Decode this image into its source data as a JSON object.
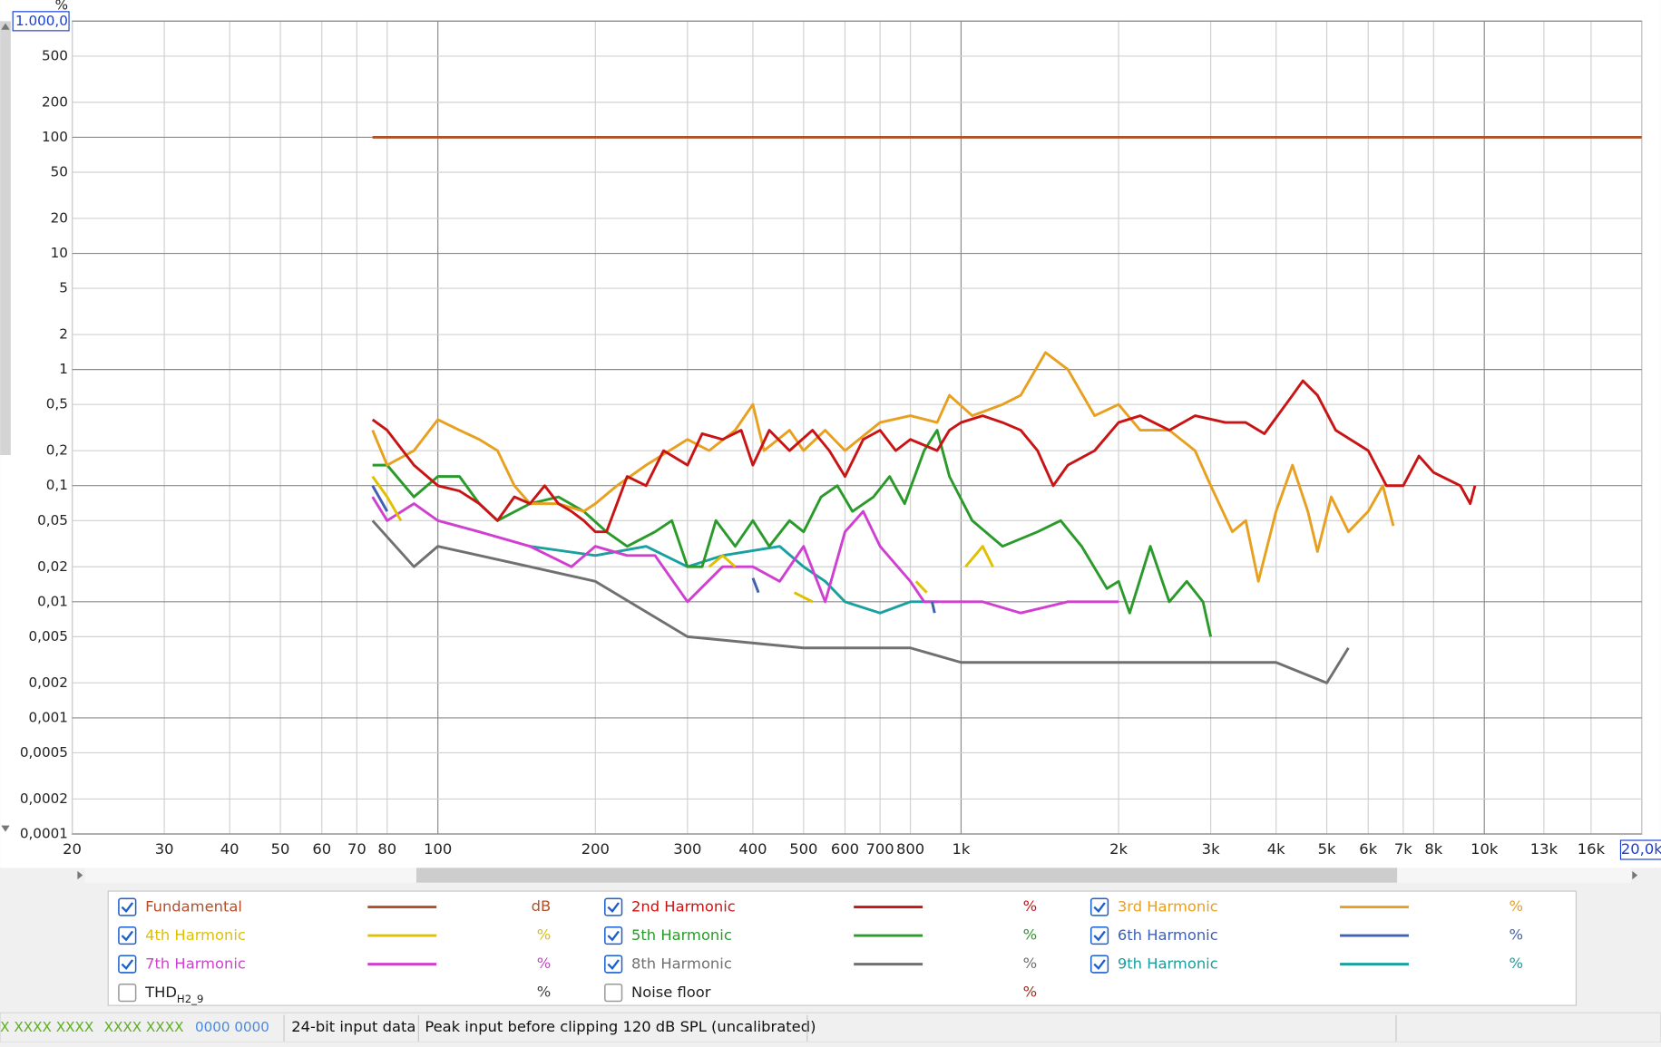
{
  "chart_data": {
    "type": "line",
    "y_unit": "%",
    "x_scale": "log",
    "y_scale": "log",
    "grid": true,
    "xlim": [
      20,
      20000
    ],
    "ylim": [
      0.0001,
      1000
    ],
    "xticks": [
      20,
      30,
      40,
      50,
      60,
      70,
      80,
      100,
      200,
      300,
      400,
      500,
      600,
      700,
      800,
      {
        "value": 1000,
        "label": "1k"
      },
      {
        "value": 2000,
        "label": "2k"
      },
      {
        "value": 3000,
        "label": "3k"
      },
      {
        "value": 4000,
        "label": "4k"
      },
      {
        "value": 5000,
        "label": "5k"
      },
      {
        "value": 6000,
        "label": "6k"
      },
      {
        "value": 7000,
        "label": "7k"
      },
      {
        "value": 8000,
        "label": "8k"
      },
      {
        "value": 10000,
        "label": "10k"
      },
      {
        "value": 13000,
        "label": "13k"
      },
      {
        "value": 16000,
        "label": "16k"
      },
      {
        "value": 20000,
        "label": "20,0k"
      }
    ],
    "yticks": [
      {
        "value": 1000,
        "label": "1.000,0"
      },
      500,
      200,
      100,
      50,
      20,
      10,
      5,
      2,
      1,
      {
        "value": 0.5,
        "label": "0,5"
      },
      {
        "value": 0.2,
        "label": "0,2"
      },
      {
        "value": 0.1,
        "label": "0,1"
      },
      {
        "value": 0.05,
        "label": "0,05"
      },
      {
        "value": 0.02,
        "label": "0,02"
      },
      {
        "value": 0.01,
        "label": "0,01"
      },
      {
        "value": 0.005,
        "label": "0,005"
      },
      {
        "value": 0.002,
        "label": "0,002"
      },
      {
        "value": 0.001,
        "label": "0,001"
      },
      {
        "value": 0.0005,
        "label": "0,0005"
      },
      {
        "value": 0.0002,
        "label": "0,0002"
      },
      {
        "value": 0.0001,
        "label": "0,0001"
      }
    ],
    "series": [
      {
        "name": "Fundamental",
        "color": "#b0502a",
        "unit": "dB",
        "checked": true,
        "x": [
          75,
          20000
        ],
        "values": [
          100,
          100
        ]
      },
      {
        "name": "2nd Harmonic",
        "color": "#c81414",
        "unit": "%",
        "checked": true,
        "x": [
          75,
          80,
          90,
          100,
          110,
          120,
          130,
          140,
          150,
          160,
          170,
          180,
          190,
          200,
          210,
          230,
          250,
          270,
          300,
          320,
          350,
          380,
          400,
          430,
          470,
          520,
          560,
          600,
          650,
          700,
          750,
          800,
          900,
          950,
          1000,
          1100,
          1200,
          1300,
          1400,
          1500,
          1600,
          1800,
          2000,
          2200,
          2500,
          2800,
          3200,
          3500,
          3800,
          4300,
          4500,
          4800,
          5200,
          6000,
          6500,
          7000,
          7500,
          8000,
          9000,
          9400,
          9600
        ],
        "values": [
          0.37,
          0.3,
          0.15,
          0.1,
          0.09,
          0.07,
          0.05,
          0.08,
          0.07,
          0.1,
          0.07,
          0.06,
          0.05,
          0.04,
          0.04,
          0.12,
          0.1,
          0.2,
          0.15,
          0.28,
          0.25,
          0.3,
          0.15,
          0.3,
          0.2,
          0.3,
          0.2,
          0.12,
          0.25,
          0.3,
          0.2,
          0.25,
          0.2,
          0.3,
          0.35,
          0.4,
          0.35,
          0.3,
          0.2,
          0.1,
          0.15,
          0.2,
          0.35,
          0.4,
          0.3,
          0.4,
          0.35,
          0.35,
          0.28,
          0.6,
          0.8,
          0.6,
          0.3,
          0.2,
          0.1,
          0.1,
          0.18,
          0.13,
          0.1,
          0.07,
          0.1
        ]
      },
      {
        "name": "3rd Harmonic",
        "color": "#e8a020",
        "unit": "%",
        "checked": true,
        "x": [
          75,
          80,
          90,
          100,
          110,
          120,
          130,
          140,
          150,
          170,
          190,
          200,
          220,
          250,
          300,
          330,
          370,
          400,
          420,
          470,
          500,
          550,
          600,
          700,
          800,
          900,
          950,
          1050,
          1200,
          1300,
          1450,
          1600,
          1800,
          2000,
          2200,
          2500,
          2800,
          3000,
          3300,
          3500,
          3700,
          4000,
          4300,
          4600,
          4800,
          5100,
          5500,
          6000,
          6400,
          6700
        ],
        "values": [
          0.3,
          0.15,
          0.2,
          0.37,
          0.3,
          0.25,
          0.2,
          0.1,
          0.07,
          0.07,
          0.06,
          0.07,
          0.1,
          0.15,
          0.25,
          0.2,
          0.3,
          0.5,
          0.2,
          0.3,
          0.2,
          0.3,
          0.2,
          0.35,
          0.4,
          0.35,
          0.6,
          0.4,
          0.5,
          0.6,
          1.4,
          1.0,
          0.4,
          0.5,
          0.3,
          0.3,
          0.2,
          0.1,
          0.04,
          0.05,
          0.015,
          0.06,
          0.15,
          0.06,
          0.027,
          0.08,
          0.04,
          0.06,
          0.1,
          0.045
        ]
      },
      {
        "name": "4th Harmonic",
        "color": "#e0c000",
        "unit": "%",
        "checked": true,
        "x": [
          75,
          80,
          85,
          null,
          330,
          350,
          370,
          null,
          480,
          520,
          null,
          820,
          860,
          null,
          1020,
          1100,
          1150
        ],
        "values": [
          0.12,
          0.08,
          0.05,
          null,
          0.02,
          0.025,
          0.02,
          null,
          0.012,
          0.01,
          null,
          0.015,
          0.012,
          null,
          0.02,
          0.03,
          0.02
        ]
      },
      {
        "name": "5th Harmonic",
        "color": "#2a9a2a",
        "unit": "%",
        "checked": true,
        "x": [
          75,
          80,
          90,
          100,
          110,
          120,
          130,
          150,
          170,
          190,
          210,
          230,
          260,
          280,
          300,
          320,
          340,
          370,
          400,
          430,
          470,
          500,
          540,
          580,
          620,
          680,
          730,
          780,
          850,
          900,
          950,
          1050,
          1200,
          1400,
          1550,
          1700,
          1900,
          2000,
          2100,
          2300,
          2500,
          2700,
          2900,
          3000
        ],
        "values": [
          0.15,
          0.15,
          0.08,
          0.12,
          0.12,
          0.07,
          0.05,
          0.07,
          0.08,
          0.06,
          0.04,
          0.03,
          0.04,
          0.05,
          0.02,
          0.02,
          0.05,
          0.03,
          0.05,
          0.03,
          0.05,
          0.04,
          0.08,
          0.1,
          0.06,
          0.08,
          0.12,
          0.07,
          0.2,
          0.3,
          0.12,
          0.05,
          0.03,
          0.04,
          0.05,
          0.03,
          0.013,
          0.015,
          0.008,
          0.03,
          0.01,
          0.015,
          0.01,
          0.005
        ]
      },
      {
        "name": "6th Harmonic",
        "color": "#4060b0",
        "unit": "%",
        "checked": true,
        "x": [
          75,
          80,
          null,
          400,
          410,
          null,
          880,
          890
        ],
        "values": [
          0.1,
          0.06,
          null,
          0.016,
          0.012,
          null,
          0.01,
          0.008
        ]
      },
      {
        "name": "7th Harmonic",
        "color": "#d040d0",
        "unit": "%",
        "checked": true,
        "x": [
          75,
          80,
          90,
          100,
          120,
          150,
          180,
          200,
          230,
          260,
          300,
          350,
          400,
          450,
          500,
          550,
          600,
          650,
          700,
          800,
          850,
          950,
          1100,
          1300,
          1600,
          1800,
          2000
        ],
        "values": [
          0.08,
          0.05,
          0.07,
          0.05,
          0.04,
          0.03,
          0.02,
          0.03,
          0.025,
          0.025,
          0.01,
          0.02,
          0.02,
          0.015,
          0.03,
          0.01,
          0.04,
          0.06,
          0.03,
          0.015,
          0.01,
          0.01,
          0.01,
          0.008,
          0.01,
          0.01,
          0.01
        ]
      },
      {
        "name": "8th Harmonic",
        "color": "#707070",
        "unit": "%",
        "checked": true,
        "x": [
          75,
          90,
          100,
          150,
          200,
          300,
          500,
          800,
          1000,
          1500,
          2000,
          3000,
          4000,
          5000,
          5500
        ],
        "values": [
          0.05,
          0.02,
          0.03,
          0.02,
          0.015,
          0.005,
          0.004,
          0.004,
          0.003,
          0.003,
          0.003,
          0.003,
          0.003,
          0.002,
          0.004
        ]
      },
      {
        "name": "9th Harmonic",
        "color": "#1aa0a0",
        "unit": "%",
        "checked": true,
        "x": [
          150,
          200,
          250,
          300,
          350,
          450,
          500,
          550,
          600,
          700,
          800,
          900
        ],
        "values": [
          0.03,
          0.025,
          0.03,
          0.02,
          0.025,
          0.03,
          0.02,
          0.015,
          0.01,
          0.008,
          0.01,
          0.01
        ]
      },
      {
        "name": "THD",
        "name_subscript": "H2_9",
        "color": "#404040",
        "unit": "%",
        "checked": false,
        "x": [],
        "values": []
      },
      {
        "name": "Noise floor",
        "color": "#a03020",
        "unit": "%",
        "checked": false,
        "x": [],
        "values": []
      }
    ]
  },
  "status_bar": {
    "items": [
      "X  XXXX XXXX",
      "XXXX XXXX",
      "0000 0000",
      "24-bit input data",
      "Peak input before clipping 120 dB SPL (uncalibrated)"
    ]
  }
}
